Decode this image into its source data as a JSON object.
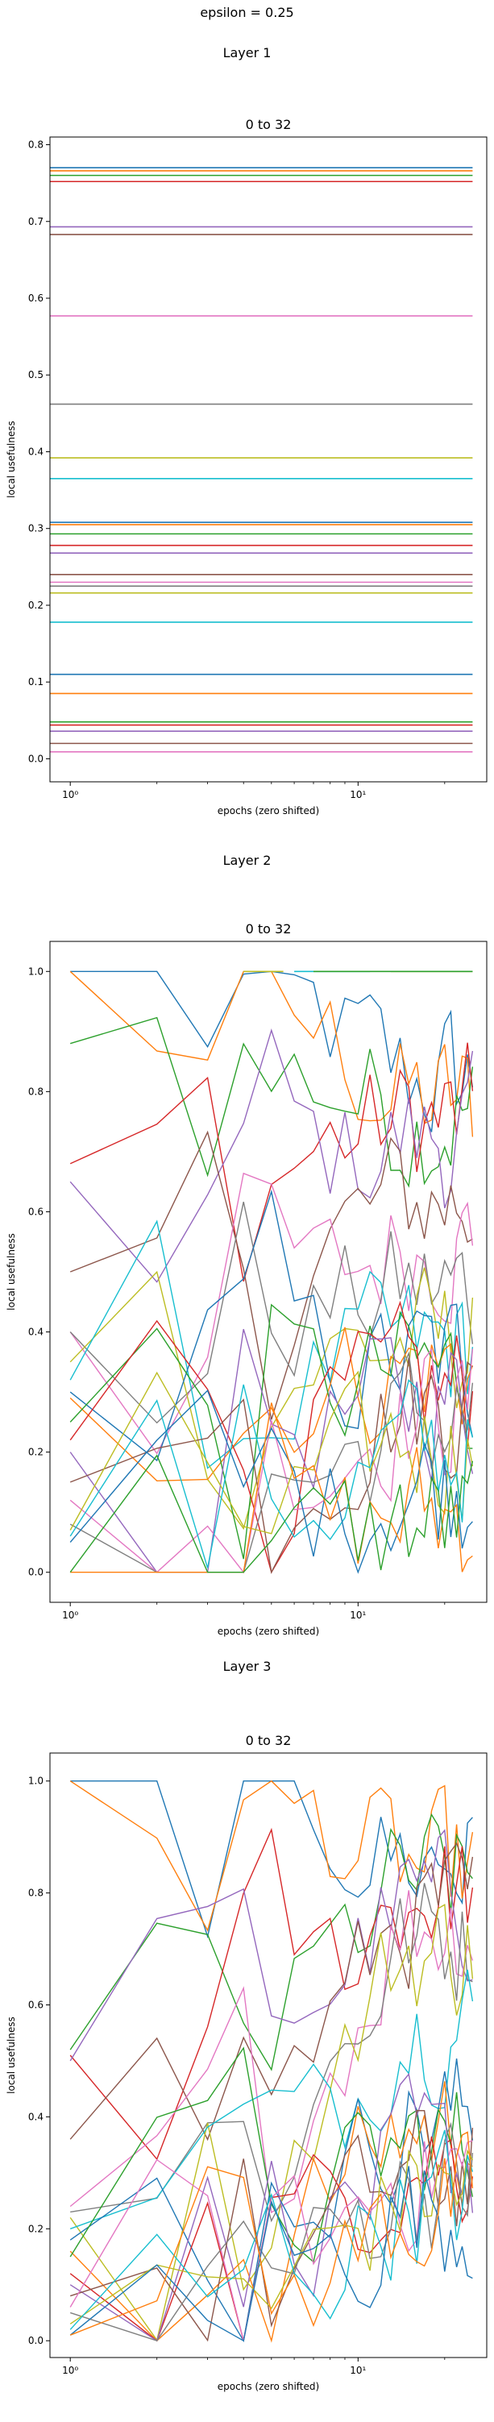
{
  "figure": {
    "suptitle": "epsilon = 0.25",
    "layer_titles": [
      "Layer 1",
      "Layer 2",
      "Layer 3"
    ]
  },
  "colors": [
    "#1f77b4",
    "#ff7f0e",
    "#2ca02c",
    "#d62728",
    "#9467bd",
    "#8c564b",
    "#e377c2",
    "#7f7f7f",
    "#bcbd22",
    "#17becf"
  ],
  "chart_data": [
    {
      "type": "line",
      "title": "0 to 32",
      "layer": "Layer 1",
      "xlabel": "epochs (zero shifted)",
      "ylabel": "local usefulness",
      "xscale": "log",
      "xlim": [
        0.85,
        28
      ],
      "ylim": [
        -0.03,
        0.81
      ],
      "yticks": [
        0.0,
        0.1,
        0.2,
        0.3,
        0.4,
        0.5,
        0.6,
        0.7,
        0.8
      ],
      "ytick_labels": [
        "0.0",
        "0.1",
        "0.2",
        "0.3",
        "0.4",
        "0.5",
        "0.6",
        "0.7",
        "0.8"
      ],
      "xticks": [
        1,
        10
      ],
      "xtick_labels": [
        "10⁰",
        "10¹"
      ],
      "grid": false,
      "constant_series": [
        0.77,
        0.766,
        0.76,
        0.752,
        0.693,
        0.683,
        0.577,
        0.462,
        0.392,
        0.365,
        0.308,
        0.305,
        0.293,
        0.278,
        0.268,
        0.24,
        0.23,
        0.225,
        0.216,
        0.178,
        0.11,
        0.085,
        0.048,
        0.044,
        0.036,
        0.02,
        0.009
      ]
    },
    {
      "type": "line",
      "title": "0 to 32",
      "layer": "Layer 2",
      "xlabel": "epochs (zero shifted)",
      "ylabel": "local usefulness",
      "xscale": "log",
      "xlim": [
        0.85,
        28
      ],
      "ylim": [
        -0.05,
        1.05
      ],
      "yticks": [
        0.0,
        0.2,
        0.4,
        0.6,
        0.8,
        1.0
      ],
      "ytick_labels": [
        "0.0",
        "0.2",
        "0.4",
        "0.6",
        "0.8",
        "1.0"
      ],
      "xticks": [
        1,
        10
      ],
      "xtick_labels": [
        "10⁰",
        "10¹"
      ],
      "grid": false,
      "series_start": [
        1.0,
        1.0,
        0.88,
        0.68,
        0.65,
        0.5,
        0.4,
        0.4,
        0.35,
        0.32,
        0.3,
        0.29,
        0.25,
        0.22,
        0.2,
        0.15,
        0.12,
        0.08,
        0.07,
        0.06,
        0.05,
        0.0,
        0.0
      ],
      "series_end": [
        0.82,
        0.78,
        0.76,
        0.75,
        0.72,
        0.62,
        0.55,
        0.47,
        0.38,
        0.37,
        0.35,
        0.34,
        0.33,
        0.3,
        0.29,
        0.28,
        0.27,
        0.25,
        0.22,
        0.2,
        0.15,
        0.1,
        0.08
      ],
      "saturated_series_end": 1.0
    },
    {
      "type": "line",
      "title": "0 to 32",
      "layer": "Layer 3",
      "xlabel": "epochs (zero shifted)",
      "ylabel": "local usefulness",
      "xscale": "log",
      "xlim": [
        0.85,
        28
      ],
      "ylim": [
        -0.03,
        1.05
      ],
      "yticks": [
        0.0,
        0.2,
        0.4,
        0.6,
        0.8,
        1.0
      ],
      "ytick_labels": [
        "0.0",
        "0.2",
        "0.4",
        "0.6",
        "0.8",
        "1.0"
      ],
      "xticks": [
        1,
        10
      ],
      "xtick_labels": [
        "10⁰",
        "10¹"
      ],
      "grid": false,
      "series_start": [
        1.0,
        1.0,
        0.52,
        0.51,
        0.5,
        0.36,
        0.24,
        0.23,
        0.22,
        0.2,
        0.18,
        0.16,
        0.15,
        0.12,
        0.1,
        0.08,
        0.06,
        0.05,
        0.03,
        0.02,
        0.01,
        0.01
      ],
      "series_end": [
        0.86,
        0.84,
        0.82,
        0.8,
        0.78,
        0.76,
        0.75,
        0.72,
        0.7,
        0.57,
        0.4,
        0.38,
        0.35,
        0.33,
        0.32,
        0.3,
        0.3,
        0.28,
        0.27,
        0.25,
        0.24,
        0.23
      ]
    }
  ]
}
